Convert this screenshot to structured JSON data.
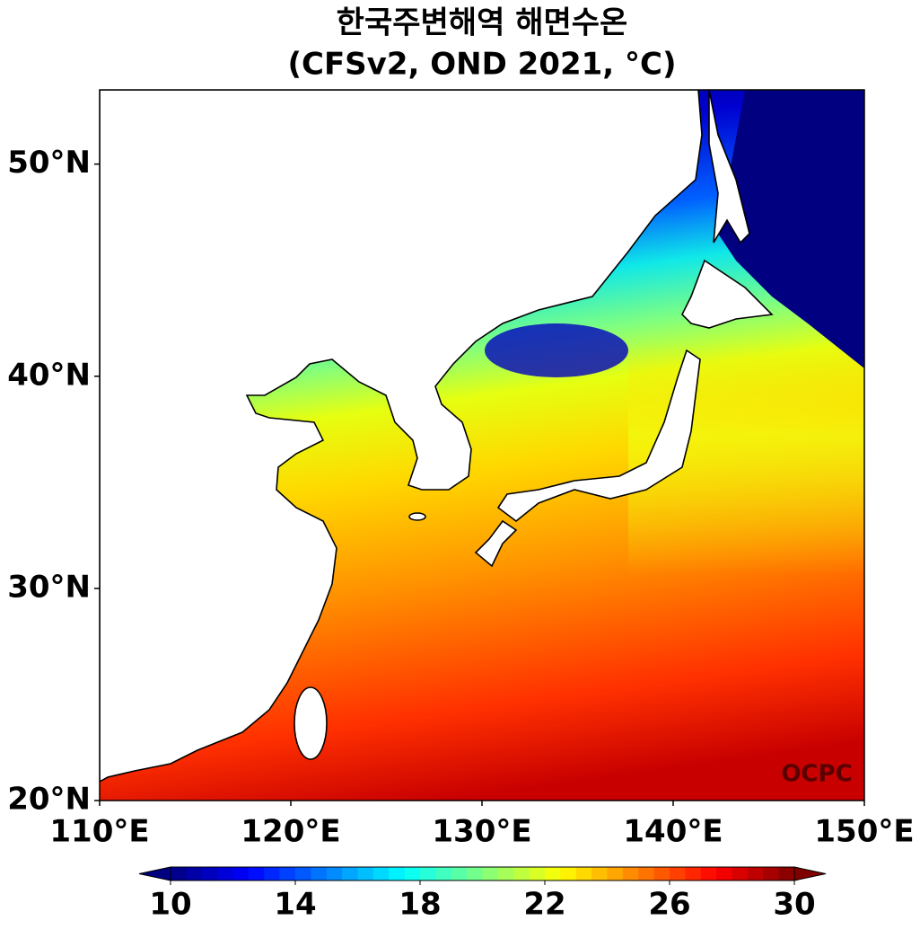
{
  "chart_data": {
    "type": "map",
    "title": "한국주변해역 해면수온",
    "subtitle": "(CFSv2, OND 2021, °C)",
    "xlim": [
      110,
      150
    ],
    "ylim": [
      20,
      53.5
    ],
    "xticks": [
      {
        "value": 110,
        "label": "110°E"
      },
      {
        "value": 120,
        "label": "120°E"
      },
      {
        "value": 130,
        "label": "130°E"
      },
      {
        "value": 140,
        "label": "140°E"
      },
      {
        "value": 150,
        "label": "150°E"
      }
    ],
    "yticks": [
      {
        "value": 20,
        "label": "20°N"
      },
      {
        "value": 30,
        "label": "30°N"
      },
      {
        "value": 40,
        "label": "40°N"
      },
      {
        "value": 50,
        "label": "50°N"
      }
    ],
    "colorbar": {
      "lim": [
        10,
        30
      ],
      "ticks": [
        10,
        14,
        18,
        22,
        26,
        30
      ],
      "colormap": "jet",
      "extend": "both"
    },
    "annotation": "OCPC"
  }
}
